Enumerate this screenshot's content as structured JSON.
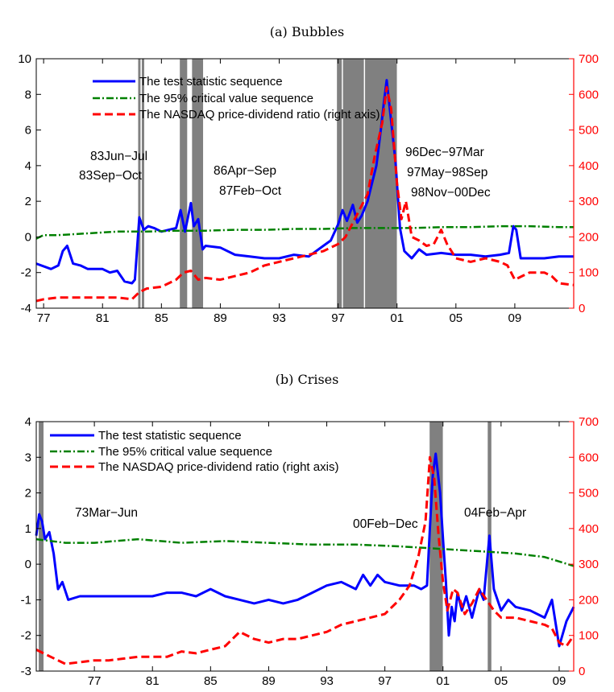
{
  "colors": {
    "test_stat": "#0000ff",
    "critical": "#008000",
    "pd_ratio": "#ff0000",
    "shade": "#808080",
    "right_axis": "#ff0000"
  },
  "chart_data": [
    {
      "type": "line",
      "panel_title": "(a) Bubbles",
      "x_tick_labels": [
        "77",
        "81",
        "85",
        "89",
        "93",
        "97",
        "01",
        "05",
        "09"
      ],
      "x_ticks": [
        1977,
        1981,
        1985,
        1989,
        1993,
        1997,
        2001,
        2005,
        2009
      ],
      "xlim": [
        1976.5,
        2013.0
      ],
      "ylim_left": [
        -4,
        10
      ],
      "ylim_right": [
        0,
        700
      ],
      "y_ticks_left": [
        -4,
        -2,
        0,
        2,
        4,
        6,
        8,
        10
      ],
      "y_ticks_right": [
        0,
        100,
        200,
        300,
        400,
        500,
        600,
        700
      ],
      "legend": [
        "The test statistic sequence",
        "The 95% critical value sequence",
        "The NASDAQ price-dividend ratio (right axis)"
      ],
      "legend_position": "top-left",
      "shaded_periods": [
        {
          "start": 1983.42,
          "end": 1983.58
        },
        {
          "start": 1983.67,
          "end": 1983.83
        },
        {
          "start": 1986.25,
          "end": 1986.75
        },
        {
          "start": 1987.08,
          "end": 1987.83
        },
        {
          "start": 1996.92,
          "end": 1997.25
        },
        {
          "start": 1997.33,
          "end": 1998.75
        },
        {
          "start": 1998.83,
          "end": 2000.99
        }
      ],
      "annotations": [
        "83Jun−Jul",
        "83Sep−Oct",
        "86Apr−Sep",
        "87Feb−Oct",
        "96Dec−97Mar",
        "97May−98Sep",
        "98Nov−00Dec"
      ],
      "series": [
        {
          "name": "The test statistic sequence",
          "axis": "left",
          "x": [
            1976.5,
            1977.5,
            1978.0,
            1978.3,
            1978.6,
            1979.0,
            1979.5,
            1980.0,
            1981.0,
            1981.5,
            1982.0,
            1982.5,
            1983.0,
            1983.2,
            1983.5,
            1983.8,
            1984.1,
            1984.5,
            1985.0,
            1985.5,
            1986.0,
            1986.3,
            1986.6,
            1987.0,
            1987.2,
            1987.5,
            1987.8,
            1988.0,
            1989.0,
            1990.0,
            1991.0,
            1992.0,
            1993.0,
            1994.0,
            1995.0,
            1996.0,
            1996.5,
            1997.0,
            1997.3,
            1997.6,
            1998.0,
            1998.3,
            1998.6,
            1999.0,
            1999.3,
            1999.6,
            1999.9,
            2000.1,
            2000.3,
            2000.6,
            2000.9,
            2001.2,
            2001.5,
            2002.0,
            2002.5,
            2003.0,
            2004.0,
            2005.0,
            2006.0,
            2007.0,
            2008.0,
            2008.6,
            2008.9,
            2009.1,
            2009.4,
            2010.0,
            2011.0,
            2012.0,
            2013.0
          ],
          "values": [
            -1.5,
            -1.8,
            -1.6,
            -0.8,
            -0.5,
            -1.5,
            -1.6,
            -1.8,
            -1.8,
            -2.0,
            -1.9,
            -2.5,
            -2.6,
            -2.4,
            1.1,
            0.4,
            0.6,
            0.5,
            0.3,
            0.4,
            0.5,
            1.5,
            0.3,
            1.9,
            0.6,
            1.0,
            -0.7,
            -0.5,
            -0.6,
            -1.0,
            -1.1,
            -1.2,
            -1.2,
            -1.0,
            -1.1,
            -0.5,
            -0.2,
            0.7,
            1.5,
            0.9,
            1.8,
            0.8,
            1.2,
            2.0,
            3.0,
            4.0,
            6.0,
            7.5,
            8.8,
            6.5,
            4.2,
            0.5,
            -0.8,
            -1.2,
            -0.7,
            -1.0,
            -0.9,
            -1.0,
            -1.0,
            -1.1,
            -1.0,
            -0.9,
            0.6,
            0.4,
            -1.2,
            -1.2,
            -1.2,
            -1.1,
            -1.1
          ]
        },
        {
          "name": "The 95% critical value sequence",
          "axis": "left",
          "x": [
            1976.5,
            1977.0,
            1978.0,
            1980.0,
            1982.0,
            1984.0,
            1986.0,
            1988.0,
            1990.0,
            1992.0,
            1994.0,
            1996.0,
            1998.0,
            2000.0,
            2002.0,
            2004.0,
            2006.0,
            2008.0,
            2010.0,
            2012.0,
            2013.0
          ],
          "values": [
            -0.1,
            0.1,
            0.1,
            0.2,
            0.3,
            0.3,
            0.35,
            0.35,
            0.4,
            0.4,
            0.45,
            0.45,
            0.5,
            0.5,
            0.5,
            0.55,
            0.55,
            0.6,
            0.6,
            0.55,
            0.55
          ]
        },
        {
          "name": "The NASDAQ price-dividend ratio (right axis)",
          "axis": "right",
          "x": [
            1976.5,
            1977.0,
            1978.0,
            1979.0,
            1980.0,
            1981.0,
            1982.0,
            1983.0,
            1983.5,
            1984.0,
            1985.0,
            1986.0,
            1986.5,
            1987.0,
            1987.5,
            1988.0,
            1989.0,
            1990.0,
            1991.0,
            1992.0,
            1993.0,
            1994.0,
            1995.0,
            1996.0,
            1997.0,
            1997.5,
            1998.0,
            1998.5,
            1999.0,
            1999.5,
            2000.0,
            2000.3,
            2000.6,
            2001.0,
            2001.3,
            2001.6,
            2002.0,
            2002.5,
            2003.0,
            2003.5,
            2004.0,
            2004.4,
            2005.0,
            2006.0,
            2007.0,
            2008.0,
            2008.5,
            2009.0,
            2009.5,
            2010.0,
            2011.0,
            2011.5,
            2012.0,
            2013.0
          ],
          "values": [
            20,
            25,
            30,
            30,
            30,
            30,
            30,
            25,
            45,
            55,
            60,
            80,
            100,
            105,
            80,
            85,
            80,
            90,
            100,
            120,
            130,
            140,
            150,
            160,
            180,
            200,
            240,
            280,
            320,
            430,
            520,
            620,
            560,
            350,
            250,
            300,
            200,
            190,
            175,
            180,
            220,
            180,
            140,
            130,
            140,
            130,
            120,
            80,
            90,
            100,
            100,
            90,
            70,
            65
          ]
        }
      ]
    },
    {
      "type": "line",
      "panel_title": "(b) Crises",
      "x_tick_labels": [
        "77",
        "81",
        "85",
        "89",
        "93",
        "97",
        "01",
        "05",
        "09"
      ],
      "x_ticks": [
        1977,
        1981,
        1985,
        1989,
        1993,
        1997,
        2001,
        2005,
        2009
      ],
      "xlim": [
        1973.0,
        2010.0
      ],
      "ylim_left": [
        -3,
        4
      ],
      "ylim_right": [
        0,
        700
      ],
      "y_ticks_left": [
        -3,
        -2,
        -1,
        0,
        1,
        2,
        3,
        4
      ],
      "y_ticks_right": [
        0,
        100,
        200,
        300,
        400,
        500,
        600,
        700
      ],
      "legend": [
        "The test statistic sequence",
        "The 95% critical value sequence",
        "The NASDAQ price-dividend ratio (right axis)"
      ],
      "legend_position": "top-left",
      "shaded_periods": [
        {
          "start": 1973.17,
          "end": 1973.5
        },
        {
          "start": 2000.08,
          "end": 2000.99
        },
        {
          "start": 2004.08,
          "end": 2004.33
        }
      ],
      "annotations": [
        "73Mar−Jun",
        "00Feb−Dec",
        "04Feb−Apr"
      ],
      "series": [
        {
          "name": "The test statistic sequence",
          "axis": "left",
          "x": [
            1973.0,
            1973.2,
            1973.4,
            1973.6,
            1973.9,
            1974.2,
            1974.5,
            1974.8,
            1975.2,
            1976.0,
            1977.0,
            1978.0,
            1979.0,
            1980.0,
            1981.0,
            1982.0,
            1983.0,
            1984.0,
            1985.0,
            1986.0,
            1987.0,
            1988.0,
            1989.0,
            1990.0,
            1991.0,
            1992.0,
            1993.0,
            1994.0,
            1995.0,
            1995.5,
            1996.0,
            1996.5,
            1997.0,
            1998.0,
            1999.0,
            1999.5,
            1999.9,
            2000.1,
            2000.3,
            2000.5,
            2000.8,
            2001.0,
            2001.2,
            2001.4,
            2001.6,
            2001.8,
            2002.0,
            2002.3,
            2002.6,
            2003.0,
            2003.5,
            2003.8,
            2004.2,
            2004.5,
            2005.0,
            2005.5,
            2006.0,
            2007.0,
            2008.0,
            2008.5,
            2009.0,
            2009.5,
            2010.0
          ],
          "values": [
            0.8,
            1.4,
            1.2,
            0.7,
            0.9,
            0.3,
            -0.7,
            -0.5,
            -1.0,
            -0.9,
            -0.9,
            -0.9,
            -0.9,
            -0.9,
            -0.9,
            -0.8,
            -0.8,
            -0.9,
            -0.7,
            -0.9,
            -1.0,
            -1.1,
            -1.0,
            -1.1,
            -1.0,
            -0.8,
            -0.6,
            -0.5,
            -0.7,
            -0.3,
            -0.6,
            -0.3,
            -0.5,
            -0.6,
            -0.6,
            -0.7,
            -0.6,
            1.0,
            2.5,
            3.1,
            2.0,
            0.7,
            -0.5,
            -2.0,
            -1.2,
            -1.6,
            -0.8,
            -1.3,
            -0.9,
            -1.5,
            -0.7,
            -1.0,
            0.8,
            -0.7,
            -1.3,
            -1.0,
            -1.2,
            -1.3,
            -1.5,
            -1.0,
            -2.3,
            -1.6,
            -1.2
          ]
        },
        {
          "name": "The 95% critical value sequence",
          "axis": "left",
          "x": [
            1973.0,
            1975.0,
            1977.0,
            1980.0,
            1983.0,
            1986.0,
            1989.0,
            1992.0,
            1995.0,
            1998.0,
            2000.0,
            2002.0,
            2004.0,
            2006.0,
            2008.0,
            2010.0
          ],
          "values": [
            0.7,
            0.6,
            0.6,
            0.7,
            0.6,
            0.65,
            0.6,
            0.55,
            0.55,
            0.5,
            0.45,
            0.4,
            0.35,
            0.3,
            0.2,
            -0.05
          ]
        },
        {
          "name": "The NASDAQ price-dividend ratio (right axis)",
          "axis": "right",
          "x": [
            1973.0,
            1973.5,
            1974.0,
            1975.0,
            1976.0,
            1977.0,
            1978.0,
            1979.0,
            1980.0,
            1981.0,
            1982.0,
            1983.0,
            1984.0,
            1985.0,
            1986.0,
            1987.0,
            1988.0,
            1989.0,
            1990.0,
            1991.0,
            1992.0,
            1993.0,
            1994.0,
            1995.0,
            1996.0,
            1997.0,
            1998.0,
            1998.7,
            1999.3,
            1999.8,
            2000.1,
            2000.4,
            2000.7,
            2001.0,
            2001.3,
            2001.7,
            2002.0,
            2002.5,
            2003.0,
            2003.5,
            2004.0,
            2004.5,
            2005.0,
            2006.0,
            2007.0,
            2008.0,
            2008.5,
            2009.0,
            2009.5,
            2010.0
          ],
          "values": [
            60,
            50,
            40,
            20,
            25,
            30,
            30,
            35,
            40,
            40,
            40,
            55,
            50,
            60,
            70,
            110,
            90,
            80,
            90,
            90,
            100,
            110,
            130,
            140,
            150,
            160,
            200,
            240,
            320,
            420,
            600,
            540,
            380,
            250,
            170,
            230,
            220,
            160,
            190,
            230,
            200,
            170,
            150,
            150,
            140,
            130,
            120,
            80,
            70,
            100
          ]
        }
      ]
    }
  ]
}
